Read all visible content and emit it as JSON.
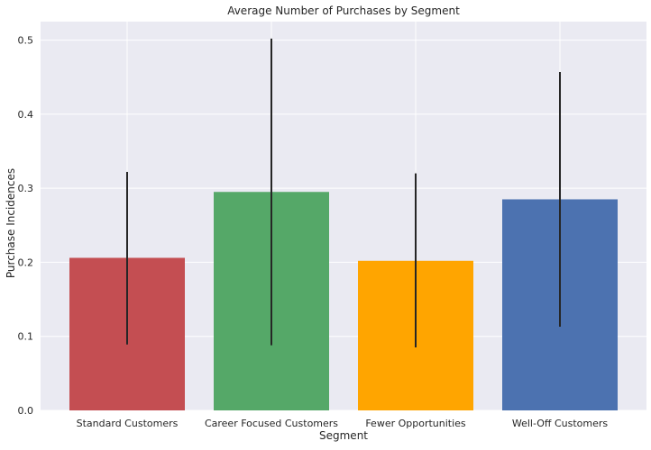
{
  "chart_data": {
    "type": "bar",
    "title": "Average Number of Purchases by Segment",
    "xlabel": "Segment",
    "ylabel": "Purchase Incidences",
    "categories": [
      "Standard Customers",
      "Career Focused Customers",
      "Fewer Opportunities",
      "Well-Off Customers"
    ],
    "values": [
      0.206,
      0.295,
      0.202,
      0.285
    ],
    "error_low": [
      0.089,
      0.088,
      0.085,
      0.113
    ],
    "error_high": [
      0.322,
      0.502,
      0.32,
      0.457
    ],
    "colors": [
      "#c44e52",
      "#55a868",
      "#ffa500",
      "#4c72b0"
    ],
    "ylim": [
      0,
      0.525
    ],
    "yticks": [
      0.0,
      0.1,
      0.2,
      0.3,
      0.4,
      0.5
    ],
    "ytick_labels": [
      "0.0",
      "0.1",
      "0.2",
      "0.3",
      "0.4",
      "0.5"
    ],
    "grid": true,
    "background": "#eaeaf2",
    "errorbar_color": "#262626"
  }
}
